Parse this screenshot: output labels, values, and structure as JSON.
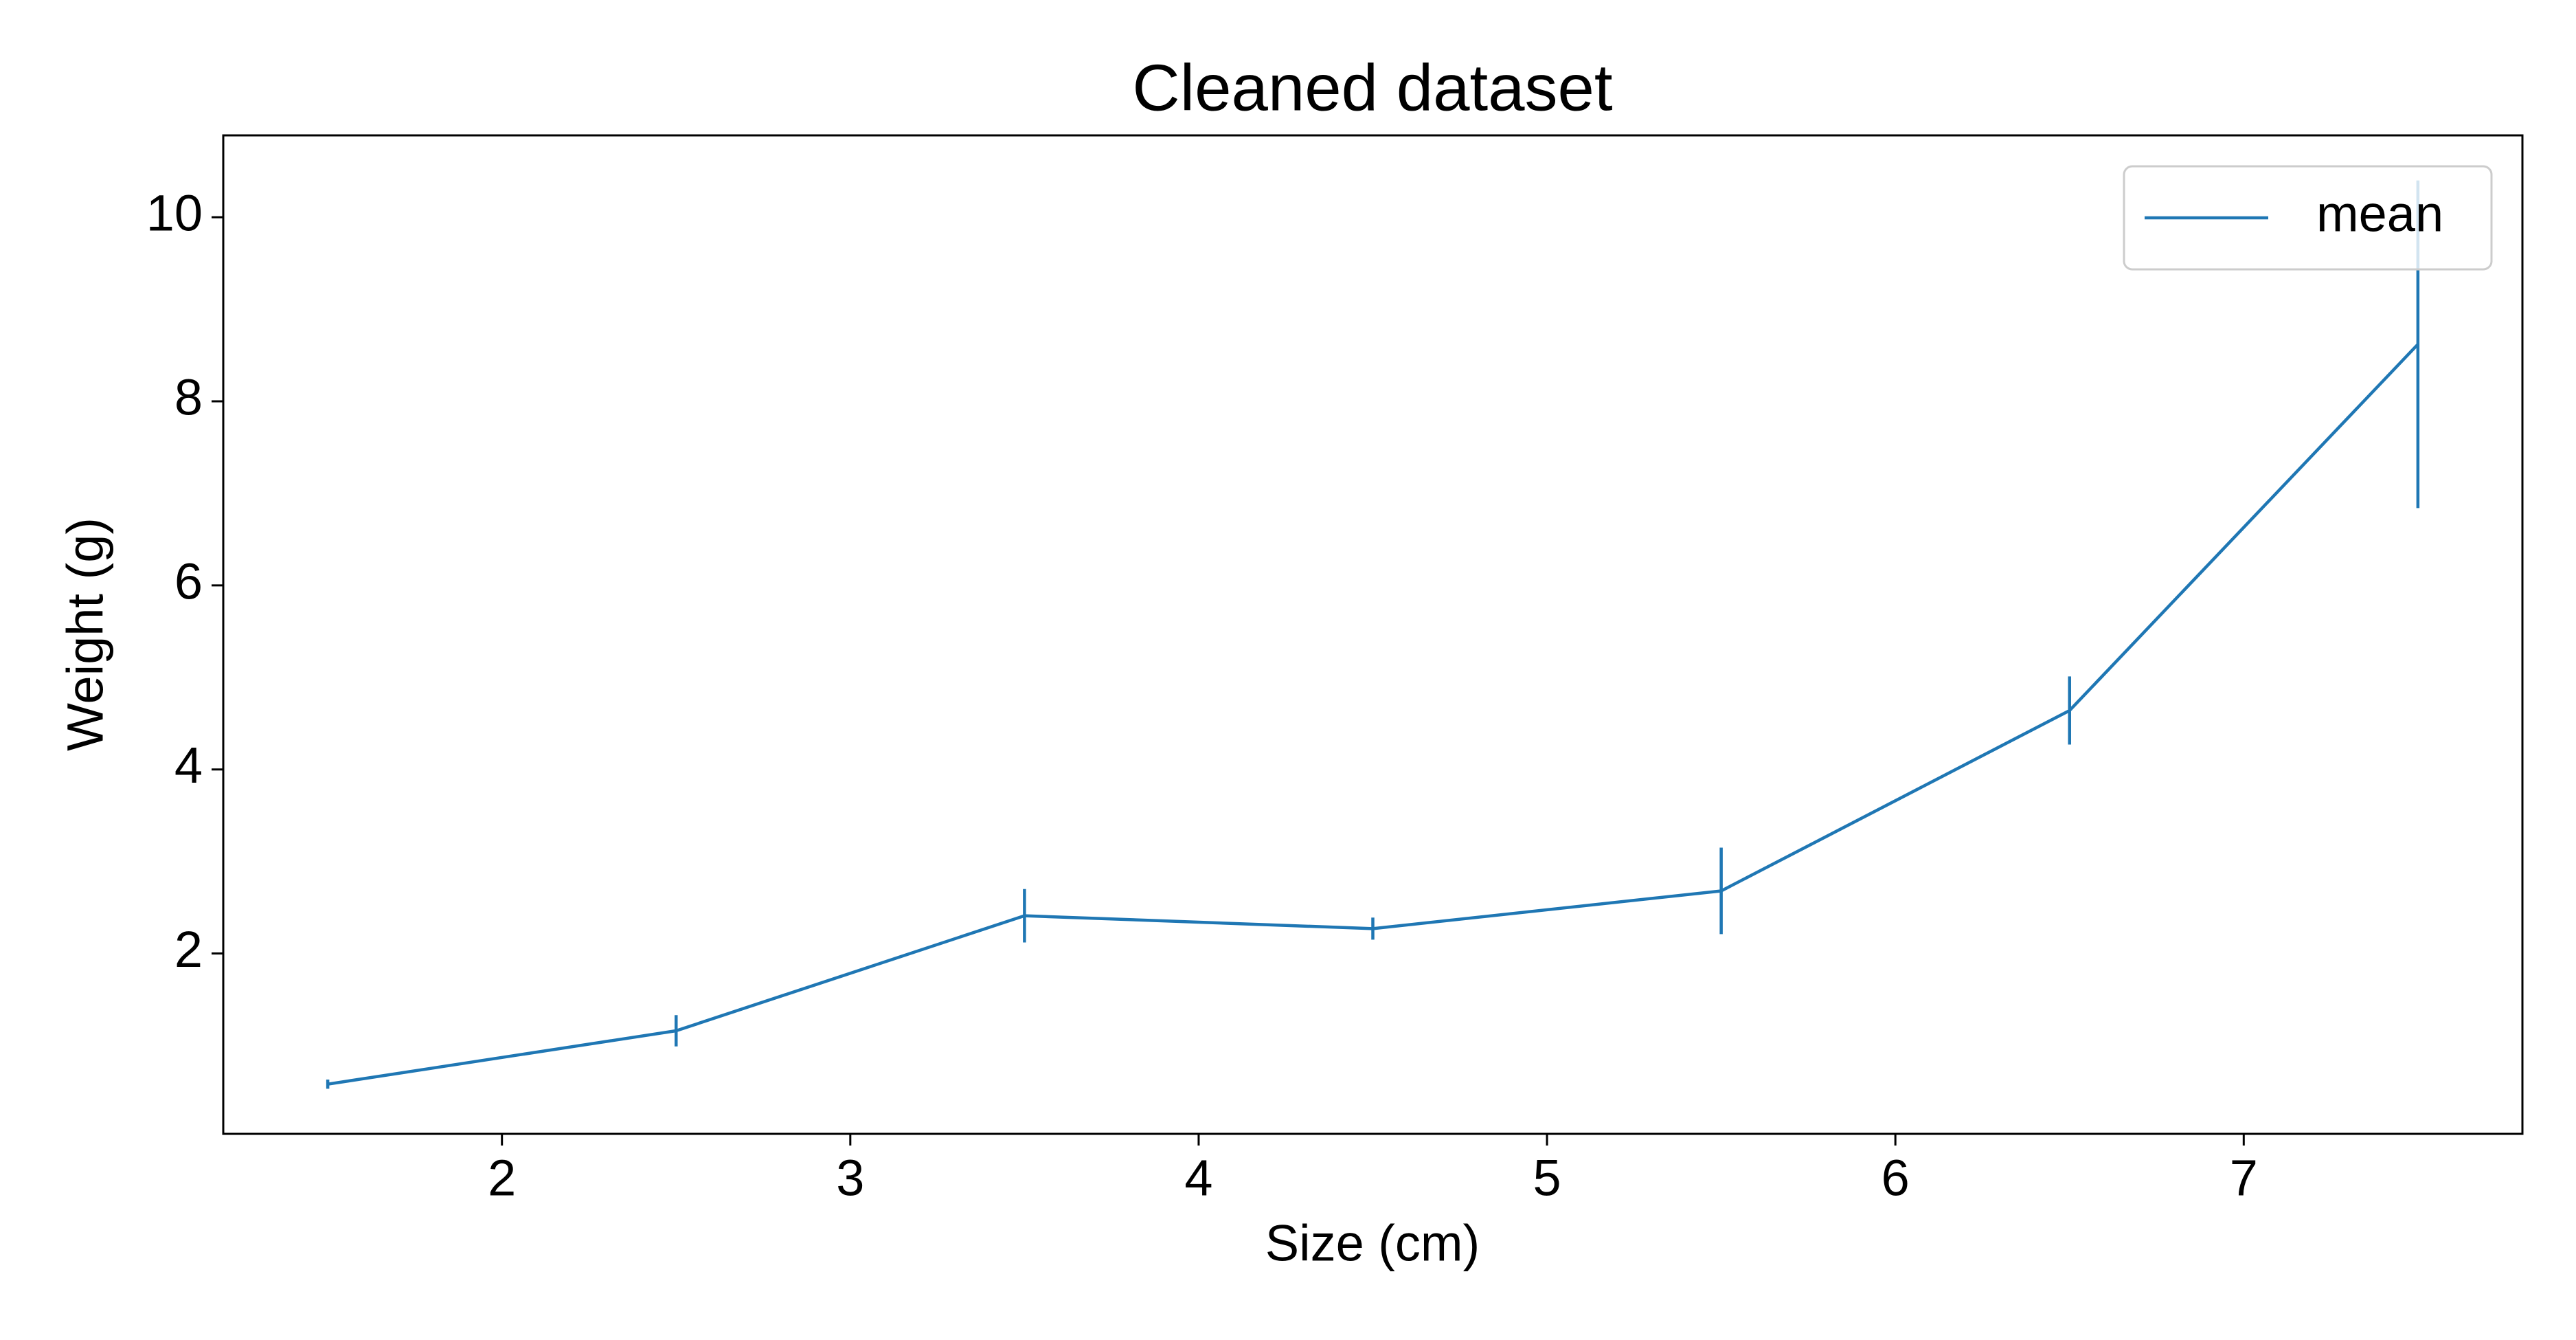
{
  "chart_data": {
    "type": "errorbar-line",
    "title": "Cleaned dataset",
    "x_label": "Size (cm)",
    "y_label": "Weight (g)",
    "x": [
      1.5,
      2.5,
      3.5,
      4.5,
      5.5,
      6.5,
      7.5
    ],
    "series": [
      {
        "name": "mean",
        "color": "#1f77b4",
        "values": [
          0.58,
          1.16,
          2.41,
          2.27,
          2.68,
          4.64,
          8.62
        ],
        "errors": [
          0.05,
          0.17,
          0.29,
          0.12,
          0.47,
          0.37,
          1.78
        ]
      }
    ],
    "xlim": [
      1.2,
      7.8
    ],
    "xticks": [
      2,
      3,
      4,
      5,
      6,
      7
    ],
    "ylim": [
      0.04,
      10.89
    ],
    "yticks": [
      2,
      4,
      6,
      8,
      10
    ],
    "legend": "upper right",
    "grid": false
  }
}
